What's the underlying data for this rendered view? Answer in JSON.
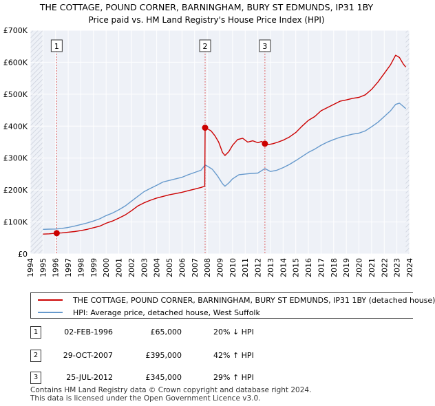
{
  "chart_data": {
    "type": "line",
    "title": "THE COTTAGE, POUND CORNER, BARNINGHAM, BURY ST EDMUNDS, IP31 1BY",
    "subtitle": "Price paid vs. HM Land Registry's House Price Index (HPI)",
    "ylim": [
      0,
      700000
    ],
    "xlim": [
      1994.0,
      2024.0
    ],
    "y_ticks": [
      {
        "value": 0,
        "label": "£0"
      },
      {
        "value": 100000,
        "label": "£100K"
      },
      {
        "value": 200000,
        "label": "£200K"
      },
      {
        "value": 300000,
        "label": "£300K"
      },
      {
        "value": 400000,
        "label": "£400K"
      },
      {
        "value": 500000,
        "label": "£500K"
      },
      {
        "value": 600000,
        "label": "£600K"
      },
      {
        "value": 700000,
        "label": "£700K"
      }
    ],
    "x_ticks": [
      "1994",
      "1995",
      "1996",
      "1997",
      "1998",
      "1999",
      "2000",
      "2001",
      "2002",
      "2003",
      "2004",
      "2005",
      "2006",
      "2007",
      "2008",
      "2009",
      "2010",
      "2011",
      "2012",
      "2013",
      "2014",
      "2015",
      "2016",
      "2017",
      "2018",
      "2019",
      "2020",
      "2021",
      "2022",
      "2023",
      "2024"
    ],
    "series": [
      {
        "name": "THE COTTAGE, POUND CORNER, BARNINGHAM, BURY ST EDMUNDS, IP31 1BY (detached house)",
        "color": "#cc0000",
        "points": [
          [
            1995.0,
            62000
          ],
          [
            1995.5,
            63000
          ],
          [
            1996.09,
            65000
          ],
          [
            1996.5,
            66000
          ],
          [
            1997.0,
            68000
          ],
          [
            1997.5,
            70000
          ],
          [
            1998.0,
            73000
          ],
          [
            1998.5,
            77000
          ],
          [
            1999.0,
            82000
          ],
          [
            1999.5,
            87000
          ],
          [
            2000.0,
            96000
          ],
          [
            2000.5,
            103000
          ],
          [
            2001.0,
            112000
          ],
          [
            2001.5,
            122000
          ],
          [
            2002.0,
            135000
          ],
          [
            2002.5,
            150000
          ],
          [
            2003.0,
            160000
          ],
          [
            2003.5,
            168000
          ],
          [
            2004.0,
            175000
          ],
          [
            2004.5,
            180000
          ],
          [
            2005.0,
            185000
          ],
          [
            2005.5,
            189000
          ],
          [
            2006.0,
            193000
          ],
          [
            2006.5,
            198000
          ],
          [
            2007.0,
            203000
          ],
          [
            2007.5,
            208000
          ],
          [
            2007.8,
            212000
          ],
          [
            2007.83,
            395000
          ],
          [
            2008.0,
            392000
          ],
          [
            2008.3,
            385000
          ],
          [
            2008.6,
            370000
          ],
          [
            2008.9,
            350000
          ],
          [
            2009.2,
            318000
          ],
          [
            2009.4,
            308000
          ],
          [
            2009.7,
            320000
          ],
          [
            2010.0,
            340000
          ],
          [
            2010.4,
            358000
          ],
          [
            2010.8,
            362000
          ],
          [
            2011.2,
            350000
          ],
          [
            2011.6,
            354000
          ],
          [
            2012.0,
            348000
          ],
          [
            2012.3,
            352000
          ],
          [
            2012.56,
            345000
          ],
          [
            2012.8,
            342000
          ],
          [
            2013.2,
            345000
          ],
          [
            2013.6,
            350000
          ],
          [
            2014.0,
            356000
          ],
          [
            2014.5,
            366000
          ],
          [
            2015.0,
            380000
          ],
          [
            2015.5,
            400000
          ],
          [
            2016.0,
            418000
          ],
          [
            2016.5,
            430000
          ],
          [
            2017.0,
            448000
          ],
          [
            2017.5,
            458000
          ],
          [
            2018.0,
            468000
          ],
          [
            2018.5,
            478000
          ],
          [
            2019.0,
            482000
          ],
          [
            2019.5,
            487000
          ],
          [
            2020.0,
            490000
          ],
          [
            2020.5,
            498000
          ],
          [
            2021.0,
            515000
          ],
          [
            2021.5,
            538000
          ],
          [
            2022.0,
            565000
          ],
          [
            2022.5,
            592000
          ],
          [
            2022.9,
            622000
          ],
          [
            2023.2,
            615000
          ],
          [
            2023.5,
            595000
          ],
          [
            2023.7,
            585000
          ]
        ]
      },
      {
        "name": "HPI: Average price, detached house, West Suffolk",
        "color": "#6699cc",
        "points": [
          [
            1995.0,
            77000
          ],
          [
            1995.5,
            77500
          ],
          [
            1996.0,
            78000
          ],
          [
            1996.5,
            80000
          ],
          [
            1997.0,
            83000
          ],
          [
            1997.5,
            87000
          ],
          [
            1998.0,
            92000
          ],
          [
            1998.5,
            97000
          ],
          [
            1999.0,
            103000
          ],
          [
            1999.5,
            110000
          ],
          [
            2000.0,
            120000
          ],
          [
            2000.5,
            128000
          ],
          [
            2001.0,
            138000
          ],
          [
            2001.5,
            150000
          ],
          [
            2002.0,
            165000
          ],
          [
            2002.5,
            180000
          ],
          [
            2003.0,
            195000
          ],
          [
            2003.5,
            205000
          ],
          [
            2004.0,
            215000
          ],
          [
            2004.5,
            225000
          ],
          [
            2005.0,
            230000
          ],
          [
            2005.5,
            235000
          ],
          [
            2006.0,
            240000
          ],
          [
            2006.5,
            248000
          ],
          [
            2007.0,
            255000
          ],
          [
            2007.5,
            262000
          ],
          [
            2007.83,
            278000
          ],
          [
            2008.0,
            275000
          ],
          [
            2008.4,
            265000
          ],
          [
            2008.8,
            245000
          ],
          [
            2009.2,
            220000
          ],
          [
            2009.4,
            212000
          ],
          [
            2009.7,
            222000
          ],
          [
            2010.0,
            235000
          ],
          [
            2010.5,
            248000
          ],
          [
            2011.0,
            250000
          ],
          [
            2011.5,
            252000
          ],
          [
            2012.0,
            253000
          ],
          [
            2012.56,
            267000
          ],
          [
            2013.0,
            258000
          ],
          [
            2013.5,
            262000
          ],
          [
            2014.0,
            270000
          ],
          [
            2014.5,
            280000
          ],
          [
            2015.0,
            292000
          ],
          [
            2015.5,
            305000
          ],
          [
            2016.0,
            318000
          ],
          [
            2016.5,
            328000
          ],
          [
            2017.0,
            340000
          ],
          [
            2017.5,
            350000
          ],
          [
            2018.0,
            358000
          ],
          [
            2018.5,
            365000
          ],
          [
            2019.0,
            370000
          ],
          [
            2019.5,
            375000
          ],
          [
            2020.0,
            378000
          ],
          [
            2020.5,
            385000
          ],
          [
            2021.0,
            398000
          ],
          [
            2021.5,
            412000
          ],
          [
            2022.0,
            430000
          ],
          [
            2022.5,
            448000
          ],
          [
            2022.9,
            468000
          ],
          [
            2023.2,
            472000
          ],
          [
            2023.5,
            462000
          ],
          [
            2023.7,
            455000
          ]
        ]
      }
    ],
    "sales": [
      {
        "label": "1",
        "x": 1996.09,
        "value": 65000
      },
      {
        "label": "2",
        "x": 2007.83,
        "value": 395000
      },
      {
        "label": "3",
        "x": 2012.56,
        "value": 345000
      }
    ]
  },
  "legend": {
    "property_label": "THE COTTAGE, POUND CORNER, BARNINGHAM, BURY ST EDMUNDS, IP31 1BY (detached house)",
    "hpi_label": "HPI: Average price, detached house, West Suffolk",
    "property_color": "#cc0000",
    "hpi_color": "#6699cc"
  },
  "transactions": [
    {
      "num": "1",
      "date": "02-FEB-1996",
      "price": "£65,000",
      "hpi": "20% ↓ HPI"
    },
    {
      "num": "2",
      "date": "29-OCT-2007",
      "price": "£395,000",
      "hpi": "42% ↑ HPI"
    },
    {
      "num": "3",
      "date": "25-JUL-2012",
      "price": "£345,000",
      "hpi": "29% ↑ HPI"
    }
  ],
  "footer": {
    "line1": "Contains HM Land Registry data © Crown copyright and database right 2024.",
    "line2": "This data is licensed under the Open Government Licence v3.0."
  }
}
